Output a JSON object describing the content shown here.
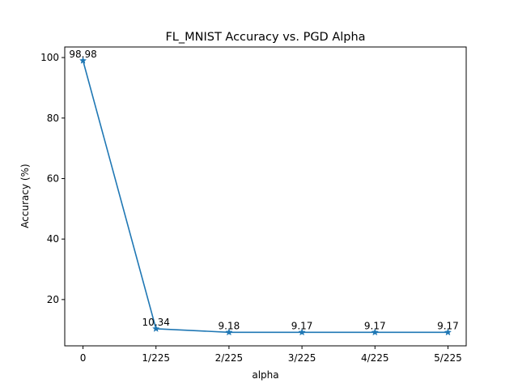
{
  "chart_data": {
    "type": "line",
    "title": "FL_MNIST Accuracy vs. PGD Alpha",
    "xlabel": "alpha",
    "ylabel": "Accuracy (%)",
    "categories": [
      "0",
      "1/225",
      "2/225",
      "3/225",
      "4/225",
      "5/225"
    ],
    "values": [
      98.98,
      10.34,
      9.18,
      9.17,
      9.17,
      9.17
    ],
    "data_labels": [
      "98.98",
      "10.34",
      "9.18",
      "9.17",
      "9.17",
      "9.17"
    ],
    "y_ticks": [
      20,
      40,
      60,
      80,
      100
    ],
    "y_tick_labels": [
      "20",
      "40",
      "60",
      "80",
      "100"
    ],
    "ylim": [
      4.7,
      103.5
    ],
    "marker": "star",
    "grid": false,
    "line_color": "#1f77b4"
  }
}
